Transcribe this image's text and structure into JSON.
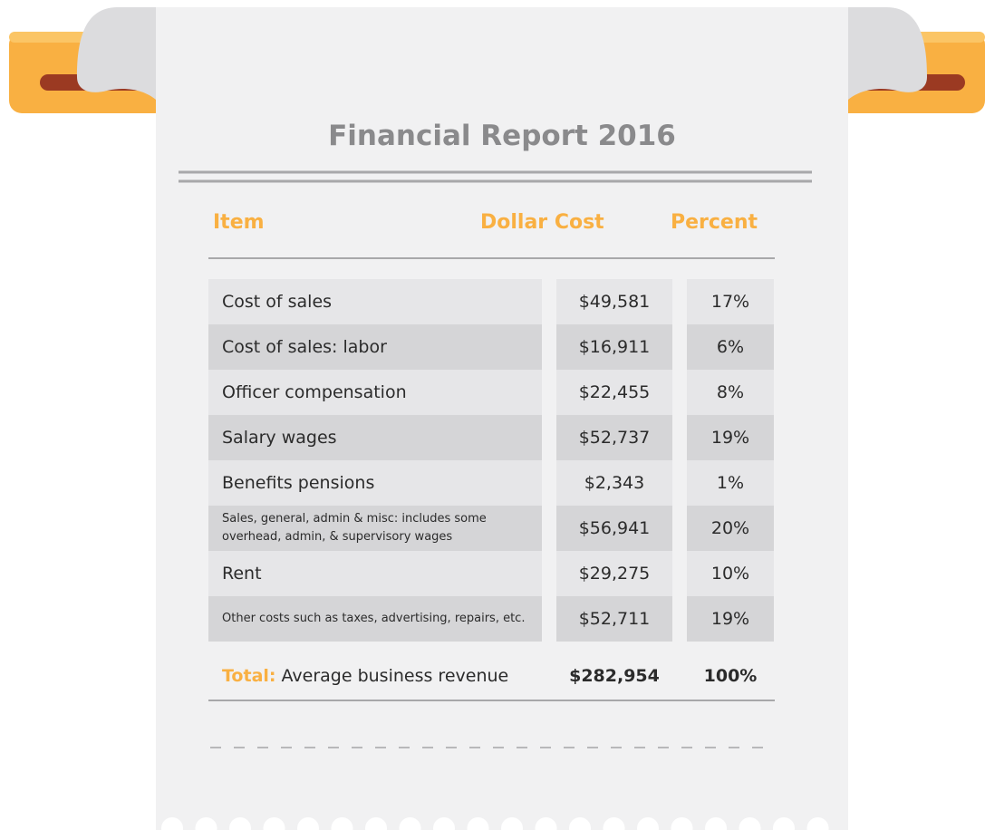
{
  "title": "Financial Report 2016",
  "table": {
    "header": [
      "Item",
      "Dollar Cost",
      "Percent"
    ],
    "rows": [
      [
        "Cost of sales",
        "$49,581",
        "17%"
      ],
      [
        "Cost of sales: labor",
        "$16,911",
        "6%"
      ],
      [
        "Officer compensation",
        "$22,455",
        "8%"
      ],
      [
        "Salary wages",
        "$52,737",
        "19%"
      ],
      [
        "Benefits pensions",
        "$2,343",
        "1%"
      ],
      [
        "Sales, general, admin & misc: includes some overhead, admin, & supervisory wages",
        "$56,941",
        "20%"
      ],
      [
        "Rent",
        "$29,275",
        "10%"
      ],
      [
        "Other costs such as taxes, advertising, repairs, etc.",
        "$52,711",
        "19%"
      ]
    ],
    "total": {
      "label": "Total:",
      "item": "Average business revenue",
      "cost": "$282,954",
      "percent": "100%"
    }
  }
}
